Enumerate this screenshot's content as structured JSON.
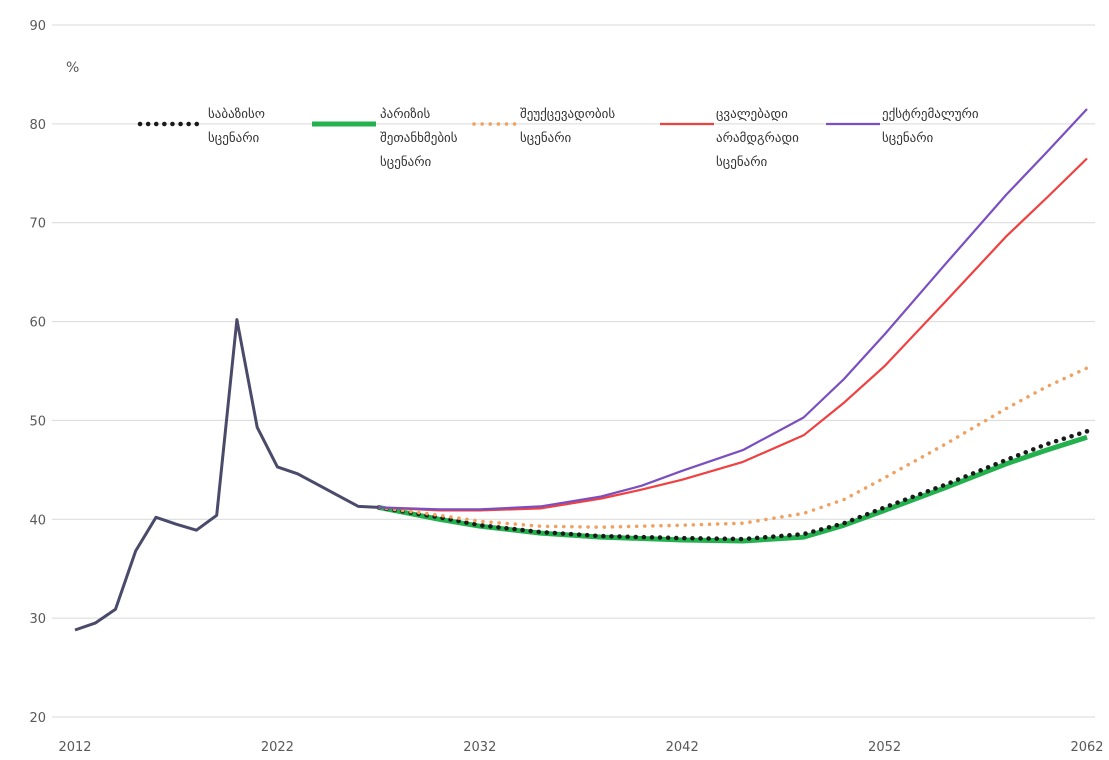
{
  "chart_data": {
    "type": "line",
    "title": "",
    "xlabel": "",
    "ylabel": "%",
    "xlim": [
      2012,
      2062
    ],
    "ylim": [
      20,
      90
    ],
    "x_ticks": [
      "2012",
      "2022",
      "2032",
      "2042",
      "2052",
      "2062"
    ],
    "y_ticks": [
      "20",
      "30",
      "40",
      "50",
      "60",
      "70",
      "80",
      "90"
    ],
    "grid": "horizontal",
    "legend_position": "top",
    "history": {
      "color": "#4a4a6a",
      "x": [
        2012,
        2013,
        2014,
        2015,
        2016,
        2017,
        2018,
        2019,
        2020,
        2021,
        2022,
        2023,
        2024,
        2025,
        2026,
        2027
      ],
      "values": [
        28.8,
        29.5,
        30.9,
        36.8,
        40.2,
        39.5,
        38.9,
        40.4,
        60.2,
        49.3,
        45.3,
        44.6,
        43.5,
        42.4,
        41.3,
        41.2
      ]
    },
    "series": [
      {
        "name": "საბაზისო სცენარი",
        "color": "#1a1a1a",
        "style": "dotted",
        "x": [
          2027,
          2030,
          2032,
          2035,
          2038,
          2042,
          2045,
          2048,
          2050,
          2052,
          2055,
          2058,
          2060,
          2062
        ],
        "values": [
          41.2,
          40.2,
          39.4,
          38.7,
          38.3,
          38.1,
          38.0,
          38.5,
          39.6,
          41.2,
          43.5,
          46.0,
          47.6,
          48.9
        ]
      },
      {
        "name": "პარიზის შეთანხმების სცენარი",
        "color": "#22b14c",
        "style": "solid-thick",
        "x": [
          2027,
          2030,
          2032,
          2035,
          2038,
          2042,
          2045,
          2048,
          2050,
          2052,
          2055,
          2058,
          2060,
          2062
        ],
        "values": [
          41.2,
          40.0,
          39.3,
          38.6,
          38.2,
          37.9,
          37.8,
          38.2,
          39.4,
          40.9,
          43.2,
          45.6,
          47.0,
          48.3
        ]
      },
      {
        "name": "შეუქცევადობის სცენარი",
        "color": "#f0a060",
        "style": "dotted",
        "x": [
          2027,
          2030,
          2032,
          2035,
          2038,
          2042,
          2045,
          2048,
          2050,
          2052,
          2055,
          2058,
          2060,
          2062
        ],
        "values": [
          41.2,
          40.4,
          39.8,
          39.3,
          39.2,
          39.4,
          39.6,
          40.6,
          42.0,
          44.2,
          47.6,
          51.2,
          53.4,
          55.3
        ]
      },
      {
        "name": "ცვალებადი არამდგრადი სცენარი",
        "color": "#f04040",
        "style": "solid",
        "x": [
          2027,
          2030,
          2032,
          2035,
          2038,
          2040,
          2042,
          2045,
          2048,
          2050,
          2052,
          2055,
          2058,
          2060,
          2062
        ],
        "values": [
          41.2,
          40.9,
          40.9,
          41.1,
          42.1,
          43.0,
          44.0,
          45.8,
          48.5,
          51.8,
          55.5,
          62.0,
          68.6,
          72.5,
          76.5
        ]
      },
      {
        "name": "ექსტრემალური სცენარი",
        "color": "#7a4fc0",
        "style": "solid",
        "x": [
          2027,
          2030,
          2032,
          2035,
          2038,
          2040,
          2042,
          2045,
          2048,
          2050,
          2052,
          2055,
          2058,
          2060,
          2062
        ],
        "values": [
          41.2,
          41.0,
          41.0,
          41.3,
          42.3,
          43.4,
          44.9,
          47.0,
          50.3,
          54.2,
          58.7,
          65.8,
          72.8,
          77.1,
          81.5
        ]
      }
    ],
    "legend_lines": [
      [
        "საბაზისო",
        "სცენარი"
      ],
      [
        "პარიზის",
        "შეთანხმების",
        "სცენარი"
      ],
      [
        "შეუქცევადობის",
        "სცენარი"
      ],
      [
        "ცვალებადი",
        "არამდგრადი",
        "სცენარი"
      ],
      [
        "ექსტრემალური",
        "სცენარი"
      ]
    ]
  }
}
